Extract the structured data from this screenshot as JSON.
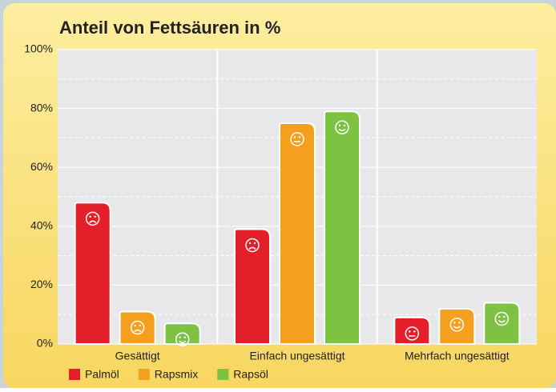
{
  "chart_data": {
    "type": "bar",
    "title": "Anteil von Fettsäuren in %",
    "categories": [
      "Gesättigt",
      "Einfach ungesättigt",
      "Mehrfach ungesättigt"
    ],
    "series": [
      {
        "name": "Palmöl",
        "color": "#e3202a",
        "values": [
          48,
          39,
          9
        ]
      },
      {
        "name": "Rapsmix",
        "color": "#f59f1e",
        "values": [
          11,
          75,
          12
        ]
      },
      {
        "name": "Rapsöl",
        "color": "#7dc242",
        "values": [
          7,
          79,
          14
        ]
      }
    ],
    "ylim": [
      0,
      100
    ],
    "yticks": [
      {
        "value": 0,
        "label": "0%"
      },
      {
        "value": 20,
        "label": "20%"
      },
      {
        "value": 40,
        "label": "40%"
      },
      {
        "value": 60,
        "label": "60%"
      },
      {
        "value": 80,
        "label": "80%"
      },
      {
        "value": 100,
        "label": "100%"
      }
    ],
    "grid": true,
    "legend": "bottom-left"
  }
}
